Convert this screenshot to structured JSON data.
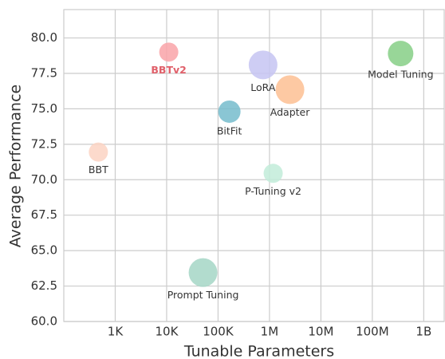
{
  "chart_data": {
    "type": "scatter",
    "x_label": "Tunable Parameters",
    "y_label": "Average Performance",
    "x_scale": "log",
    "grid": true,
    "labels": [
      "BBTv2",
      "LoRA",
      "Adapter",
      "Model Tuning",
      "BitFit",
      "BBT",
      "P-Tuning v2",
      "Prompt Tuning"
    ],
    "x": [
      11000,
      750000,
      2500000,
      355000000,
      166000,
      470,
      1180000,
      51000
    ],
    "values": [
      79.0,
      78.1,
      76.35,
      78.9,
      74.8,
      71.95,
      70.45,
      63.45
    ],
    "sizes": [
      12,
      18,
      18,
      16,
      14,
      12,
      12,
      18
    ],
    "colors": [
      "#f9a3a8",
      "#c6c4f2",
      "#fdbf93",
      "#86cf86",
      "#76bccd",
      "#fbd3c3",
      "#c2ecd9",
      "#a5d6c6"
    ],
    "label_colors": [
      "#e0606a",
      "#333333",
      "#333333",
      "#333333",
      "#333333",
      "#333333",
      "#333333",
      "#333333"
    ],
    "xlim": [
      100,
      2500000000
    ],
    "ylim": [
      60,
      82
    ],
    "xticks": [
      {
        "value": 1000,
        "label": "1K"
      },
      {
        "value": 10000,
        "label": "10K"
      },
      {
        "value": 100000,
        "label": "100K"
      },
      {
        "value": 1000000,
        "label": "1M"
      },
      {
        "value": 10000000,
        "label": "10M"
      },
      {
        "value": 100000000,
        "label": "100M"
      },
      {
        "value": 1000000000,
        "label": "1B"
      }
    ],
    "yticks": [
      {
        "value": 60,
        "label": "60.0"
      },
      62.5,
      {
        "value": 65,
        "label": "65.0"
      },
      67.5,
      {
        "value": 70,
        "label": "70.0"
      },
      72.5,
      {
        "value": 75,
        "label": "75.0"
      },
      77.5,
      {
        "value": 80,
        "label": "80.0"
      }
    ]
  }
}
